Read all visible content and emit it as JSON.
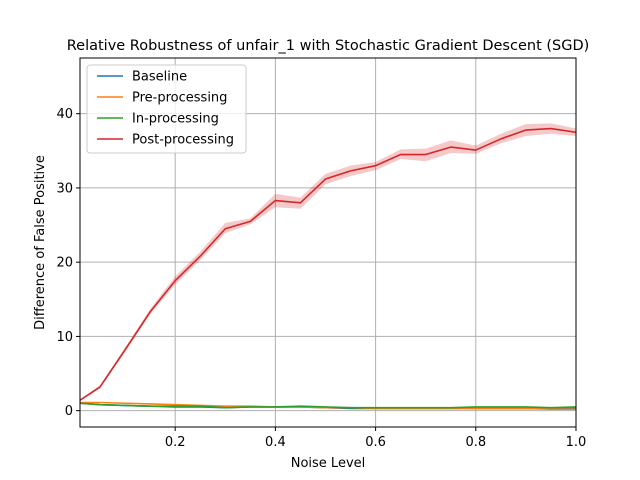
{
  "chart_data": {
    "type": "line",
    "title": "Relative Robustness of unfair_1 with Stochastic Gradient Descent (SGD)",
    "xlabel": "Noise Level",
    "ylabel": "Difference of False Positive",
    "xlim": [
      0.01,
      1.0
    ],
    "ylim": [
      -2.2,
      47.5
    ],
    "xticks": [
      0.2,
      0.4,
      0.6,
      0.8,
      1.0
    ],
    "xtick_labels": [
      "0.2",
      "0.4",
      "0.6",
      "0.8",
      "1.0"
    ],
    "yticks": [
      0,
      10,
      20,
      30,
      40
    ],
    "ytick_labels": [
      "0",
      "10",
      "20",
      "30",
      "40"
    ],
    "grid": true,
    "legend_position": "top-left",
    "x": [
      0.01,
      0.05,
      0.1,
      0.15,
      0.2,
      0.25,
      0.3,
      0.35,
      0.4,
      0.45,
      0.5,
      0.55,
      0.6,
      0.65,
      0.7,
      0.75,
      0.8,
      0.85,
      0.9,
      0.95,
      1.0
    ],
    "series": [
      {
        "name": "Baseline",
        "color": "#1f77b4",
        "values": [
          1.0,
          0.8,
          0.7,
          0.6,
          0.5,
          0.5,
          0.4,
          0.5,
          0.5,
          0.5,
          0.4,
          0.3,
          0.3,
          0.3,
          0.3,
          0.3,
          0.3,
          0.3,
          0.3,
          0.3,
          0.3
        ]
      },
      {
        "name": "Pre-processing",
        "color": "#ff7f0e",
        "values": [
          1.1,
          1.1,
          1.0,
          0.9,
          0.8,
          0.7,
          0.6,
          0.6,
          0.5,
          0.5,
          0.4,
          0.4,
          0.3,
          0.3,
          0.3,
          0.3,
          0.3,
          0.3,
          0.3,
          0.2,
          0.2
        ]
      },
      {
        "name": "In-processing",
        "color": "#2ca02c",
        "values": [
          1.0,
          0.8,
          0.7,
          0.6,
          0.6,
          0.6,
          0.4,
          0.5,
          0.5,
          0.6,
          0.5,
          0.4,
          0.4,
          0.4,
          0.4,
          0.4,
          0.5,
          0.5,
          0.5,
          0.4,
          0.5
        ]
      },
      {
        "name": "Post-processing",
        "color": "#d62728",
        "values": [
          1.4,
          3.2,
          8.2,
          13.3,
          17.5,
          20.8,
          24.5,
          25.5,
          28.3,
          28.0,
          31.2,
          32.3,
          33.0,
          34.5,
          34.5,
          35.5,
          35.1,
          36.6,
          37.8,
          38.0,
          37.5
        ],
        "band_lower": [
          1.3,
          3.0,
          7.9,
          13.0,
          17.0,
          20.3,
          23.9,
          25.1,
          27.4,
          27.2,
          30.5,
          31.6,
          32.4,
          33.9,
          33.6,
          34.7,
          34.6,
          36.0,
          37.0,
          37.3,
          37.0
        ],
        "band_upper": [
          1.5,
          3.4,
          8.5,
          13.7,
          18.1,
          21.4,
          25.3,
          25.9,
          29.2,
          28.7,
          31.9,
          33.0,
          33.5,
          35.2,
          35.3,
          36.4,
          35.7,
          37.3,
          38.6,
          38.7,
          38.0
        ]
      }
    ]
  }
}
